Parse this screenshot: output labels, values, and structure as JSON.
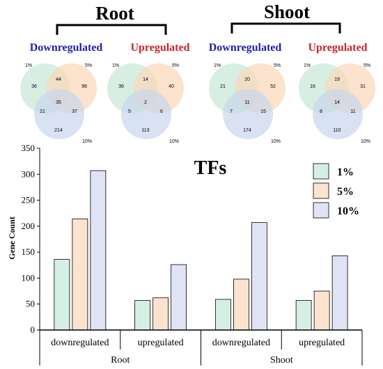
{
  "venn": {
    "root_title": "Root",
    "shoot_title": "Shoot",
    "colors": {
      "c1": "#c9ead9",
      "c5": "#fbd7b8",
      "c10": "#c9d5ec",
      "down": "#1f1fae",
      "up": "#c8242a"
    },
    "panels": [
      {
        "label": "Downregulated",
        "type": "down",
        "corner_1": "1%",
        "corner_5": "5%",
        "corner_10": "10%",
        "a_only": "36",
        "ab": "44",
        "b_only": "98",
        "ac": "21",
        "abc": "35",
        "bc": "37",
        "c_only": "214"
      },
      {
        "label": "Upregulated",
        "type": "up",
        "corner_1": "1%",
        "corner_5": "5%",
        "corner_10": "10%",
        "a_only": "36",
        "ab": "14",
        "b_only": "40",
        "ac": "5",
        "abc": "2",
        "bc": "6",
        "c_only": "113"
      },
      {
        "label": "Downregulated",
        "type": "down",
        "corner_1": "1%",
        "corner_5": "5%",
        "corner_10": "10%",
        "a_only": "21",
        "ab": "20",
        "b_only": "52",
        "ac": "7",
        "abc": "11",
        "bc": "15",
        "c_only": "174"
      },
      {
        "label": "Upregulated",
        "type": "up",
        "corner_1": "1%",
        "corner_5": "5%",
        "corner_10": "10%",
        "a_only": "16",
        "ab": "19",
        "b_only": "31",
        "ac": "8",
        "abc": "14",
        "bc": "11",
        "c_only": "110"
      }
    ]
  },
  "chart_data": {
    "type": "bar",
    "title": "TFs",
    "ylabel": "Gene Count",
    "xlabel": "",
    "ylim": [
      0,
      350
    ],
    "yticks": [
      0,
      50,
      100,
      150,
      200,
      250,
      300,
      350
    ],
    "categories": [
      "downregulated",
      "upregulated",
      "downregulated",
      "upregulated"
    ],
    "groups": [
      "Root",
      "Shoot"
    ],
    "series": [
      {
        "name": "1%",
        "color": "#d6efe3",
        "values": [
          136,
          57,
          59,
          57
        ]
      },
      {
        "name": "5%",
        "color": "#fbe3cf",
        "values": [
          214,
          62,
          98,
          75
        ]
      },
      {
        "name": "10%",
        "color": "#dfe3f3",
        "values": [
          307,
          126,
          207,
          143
        ]
      }
    ],
    "legend": "top-right",
    "grid": false
  }
}
